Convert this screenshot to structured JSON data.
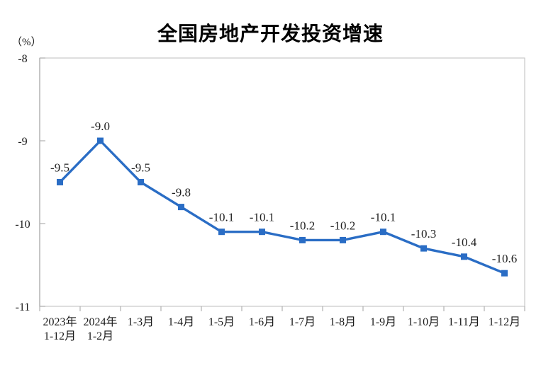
{
  "chart_data": {
    "type": "line",
    "title": "全国房地产开发投资增速",
    "unit_label": "（%）",
    "categories": [
      "2023年\n1-12月",
      "2024年\n1-2月",
      "1-3月",
      "1-4月",
      "1-5月",
      "1-6月",
      "1-7月",
      "1-8月",
      "1-9月",
      "1-10月",
      "1-11月",
      "1-12月"
    ],
    "values": [
      -9.5,
      -9.0,
      -9.5,
      -9.8,
      -10.1,
      -10.1,
      -10.2,
      -10.2,
      -10.1,
      -10.3,
      -10.4,
      -10.6
    ],
    "data_labels": [
      "-9.5",
      "-9.0",
      "-9.5",
      "-9.8",
      "-10.1",
      "-10.1",
      "-10.2",
      "-10.2",
      "-10.1",
      "-10.3",
      "-10.4",
      "-10.6"
    ],
    "ylim": [
      -11,
      -8
    ],
    "yticks": [
      -8,
      -9,
      -10,
      -11
    ],
    "grid": false,
    "legend": "none",
    "marker": "square",
    "line_color": "#2a6dc5",
    "label_color": "#1f1f1f",
    "axis_color": "#c9c9c9",
    "tick_color": "#b0b0b0"
  }
}
